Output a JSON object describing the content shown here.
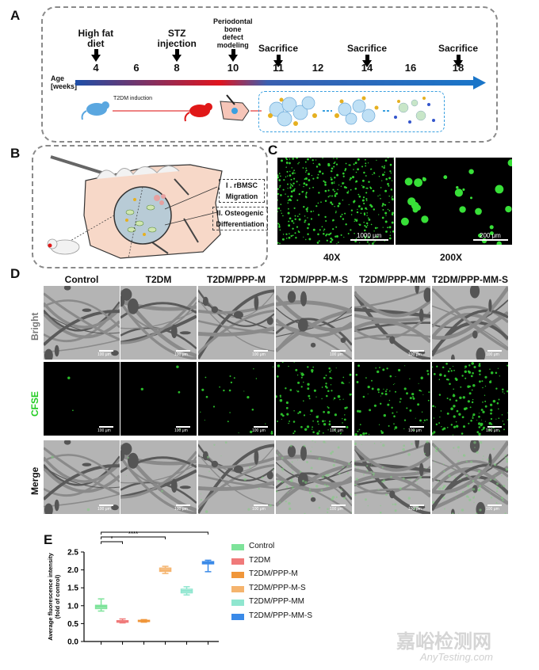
{
  "panels": {
    "a": "A",
    "b": "B",
    "c": "C",
    "d": "D",
    "e": "E"
  },
  "timeline": {
    "age_label": "Age",
    "weeks_label": "[weeks]",
    "weeks": [
      "4",
      "6",
      "8",
      "10",
      "11",
      "12",
      "14",
      "16",
      "18"
    ],
    "events": [
      {
        "label": "High fat\ndiet"
      },
      {
        "label": "STZ\ninjection"
      },
      {
        "label": "Periodontal\nbone\ndefect\nmodeling"
      },
      {
        "label": "Sacrifice"
      },
      {
        "label": "Sacrifice"
      },
      {
        "label": "Sacrifice"
      }
    ],
    "induction": "T2DM induction",
    "colors": {
      "start": "#1e5fb0",
      "mid": "#e0141e",
      "end": "#1a75c8"
    }
  },
  "panel_b": {
    "step1": "I . rBMSC",
    "step1b": "Migration",
    "step2": "II. Osteogenic",
    "step2b": "Differentiation"
  },
  "panel_c": {
    "scale1": "1000 μm",
    "scale2": "200 μm",
    "mag1": "40X",
    "mag2": "200X"
  },
  "panel_d": {
    "columns": [
      "Control",
      "T2DM",
      "T2DM/PPP-M",
      "T2DM/PPP-M-S",
      "T2DM/PPP-MM",
      "T2DM/PPP-MM-S"
    ],
    "rows": [
      "Bright",
      "CFSE",
      "Merge"
    ],
    "scale": "100 μm",
    "cfse_color": "#22cc22"
  },
  "chart_data": {
    "type": "box",
    "ylabel": "Average fluorescence intensity\n(fold of control)",
    "ylim": [
      0.0,
      2.5
    ],
    "yticks": [
      "0.0",
      "0.5",
      "1.0",
      "1.5",
      "2.0",
      "2.5"
    ],
    "series": [
      {
        "name": "Control",
        "color": "#7ee39a",
        "median": 0.97,
        "q1": 0.92,
        "q3": 1.01,
        "min": 0.85,
        "max": 1.19
      },
      {
        "name": "T2DM",
        "color": "#f07a7a",
        "median": 0.56,
        "q1": 0.54,
        "q3": 0.58,
        "min": 0.52,
        "max": 0.63
      },
      {
        "name": "T2DM/PPP-M",
        "color": "#f0963a",
        "median": 0.57,
        "q1": 0.56,
        "q3": 0.59,
        "min": 0.54,
        "max": 0.61
      },
      {
        "name": "T2DM/PPP-M-S",
        "color": "#f5b46e",
        "median": 2.0,
        "q1": 1.96,
        "q3": 2.05,
        "min": 1.9,
        "max": 2.1
      },
      {
        "name": "T2DM/PPP-MM",
        "color": "#8fe6cf",
        "median": 1.41,
        "q1": 1.36,
        "q3": 1.46,
        "min": 1.3,
        "max": 1.53
      },
      {
        "name": "T2DM/PPP-MM-S",
        "color": "#3a8ae8",
        "median": 2.2,
        "q1": 2.17,
        "q3": 2.23,
        "min": 1.95,
        "max": 2.27
      }
    ],
    "significance": [
      {
        "from": 0,
        "to": 1,
        "label": "*"
      },
      {
        "from": 0,
        "to": 3,
        "label": "****"
      },
      {
        "from": 0,
        "to": 5,
        "label": "****"
      }
    ]
  },
  "watermark": {
    "cn": "嘉峪检测网",
    "en": "AnyTesting.com"
  }
}
